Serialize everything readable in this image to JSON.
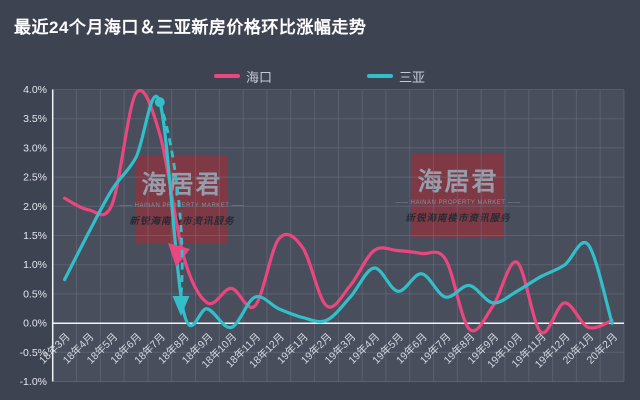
{
  "page": {
    "title": "最近24个月海口＆三亚新房价格环比涨幅走势",
    "background": "#3e4351"
  },
  "legend": {
    "items": [
      {
        "label": "海口",
        "color": "#ea4680"
      },
      {
        "label": "三亚",
        "color": "#32bfc9"
      }
    ]
  },
  "watermark": {
    "brand": "海居君",
    "caption": "—— HAINAN PROPERTY MARKET ——",
    "tagline": "新锐海南楼市资讯服务"
  },
  "chart_data": {
    "type": "line",
    "title": "最近24个月海口＆三亚新房价格环比涨幅走势",
    "unit": "% month-on-month",
    "smooth": true,
    "grid": true,
    "legend_position": "top",
    "categories": [
      "18年3月",
      "18年4月",
      "18年5月",
      "18年6月",
      "18年7月",
      "18年8月",
      "18年9月",
      "18年10月",
      "18年11月",
      "18年12月",
      "19年1月",
      "19年2月",
      "19年3月",
      "19年4月",
      "19年5月",
      "19年6月",
      "19年7月",
      "19年8月",
      "19年9月",
      "19年10月",
      "19年11月",
      "19年12月",
      "20年1月",
      "20年2月"
    ],
    "series": [
      {
        "name": "海口",
        "color": "#ea4680",
        "values": [
          2.15,
          1.95,
          2.05,
          3.95,
          3.25,
          1.15,
          0.35,
          0.6,
          0.3,
          1.45,
          1.3,
          0.3,
          0.65,
          1.25,
          1.25,
          1.2,
          1.1,
          -0.1,
          0.3,
          1.05,
          -0.15,
          0.35,
          -0.07,
          0.05
        ]
      },
      {
        "name": "三亚",
        "color": "#32bfc9",
        "values": [
          0.75,
          1.55,
          2.3,
          2.85,
          3.8,
          0.2,
          0.25,
          -0.07,
          0.45,
          0.25,
          0.1,
          0.05,
          0.45,
          0.95,
          0.55,
          0.85,
          0.45,
          0.65,
          0.35,
          0.55,
          0.8,
          1.0,
          1.35,
          0.0
        ]
      }
    ],
    "ylim": [
      -1.0,
      4.0
    ],
    "y_tick_step": 0.5,
    "y_ticks": [
      "4.0%",
      "3.5%",
      "3.0%",
      "2.5%",
      "2.0%",
      "1.5%",
      "1.0%",
      "0.5%",
      "0.0%",
      "-0.5%",
      "-1.0%"
    ],
    "annotation": {
      "note": "dashed arrow from 三亚 18年7月 peak (3.8%) down to 18年8月 (0.2%)",
      "color": "#32bfc9"
    }
  }
}
